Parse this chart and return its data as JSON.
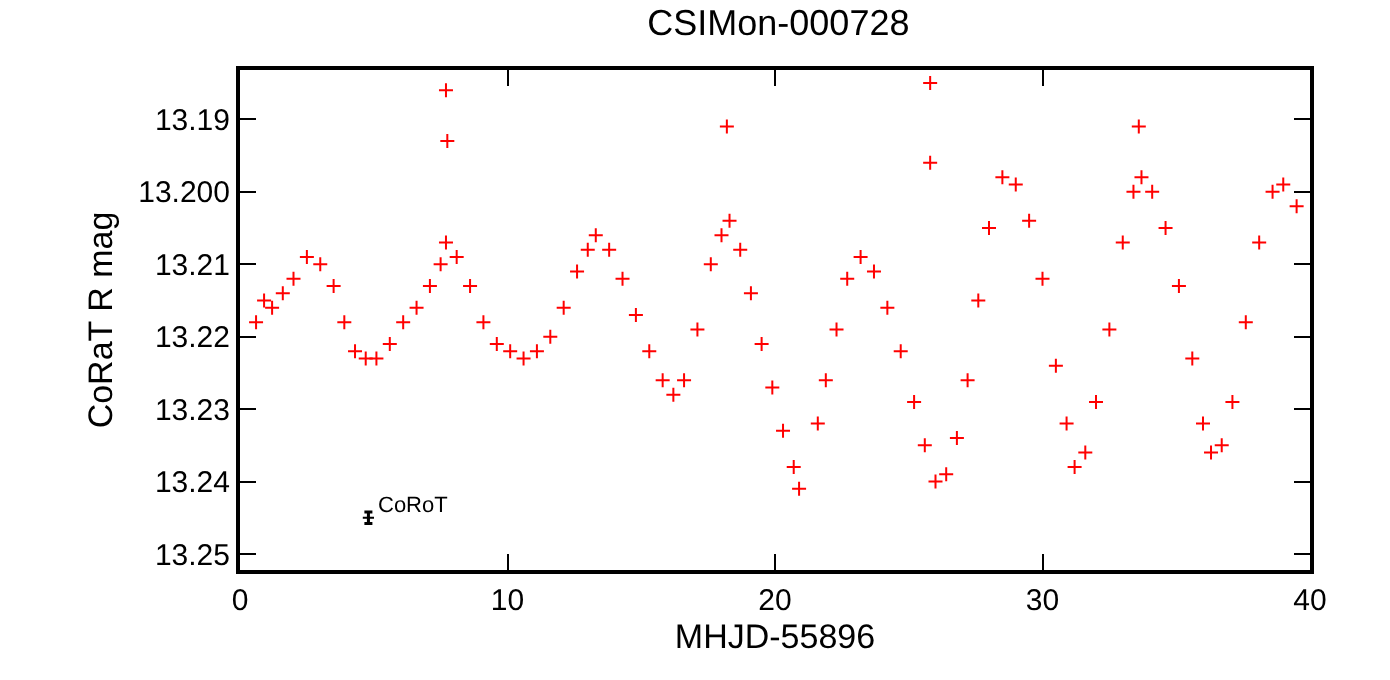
{
  "chart_data": {
    "type": "scatter",
    "title": "CSIMon-000728",
    "xlabel": "MHJD-55896",
    "ylabel": "CoRaT R mag",
    "xlim": [
      0,
      40
    ],
    "xticks": [
      0,
      10,
      20,
      30,
      40
    ],
    "ylim": [
      13.2522,
      13.1832
    ],
    "yticks": [
      13.19,
      {
        "value": 13.2,
        "label": "13.200"
      },
      13.21,
      13.22,
      13.23,
      13.24,
      13.25
    ],
    "marker": "cross",
    "series": [
      {
        "color": "#ff0000",
        "x": [
          0.6,
          0.9,
          1.2,
          1.6,
          2.0,
          2.5,
          3.0,
          3.5,
          3.9,
          4.3,
          4.7,
          5.1,
          5.6,
          6.1,
          6.6,
          7.1,
          7.5,
          7.7,
          8.1,
          8.6,
          9.1,
          9.6,
          10.1,
          10.6,
          11.1,
          11.6,
          12.1,
          12.6,
          13.0,
          13.3,
          13.8,
          14.3,
          14.8,
          15.3,
          15.8,
          16.2,
          16.6,
          17.1,
          17.6,
          18.0,
          18.3,
          18.7,
          19.1,
          19.5,
          19.9,
          20.3,
          20.7,
          20.9,
          21.6,
          21.9,
          22.3,
          22.7,
          23.2,
          23.7,
          24.2,
          24.7,
          25.2,
          25.6,
          26.0,
          26.4,
          26.8,
          27.2,
          27.6,
          28.0,
          28.5,
          29.0,
          29.5,
          30.0,
          30.5,
          30.9,
          31.2,
          31.6,
          32.0,
          32.5,
          33.0,
          33.4,
          33.7,
          34.1,
          34.6,
          35.1,
          35.6,
          36.0,
          36.3,
          36.7,
          37.1,
          37.6,
          38.1,
          38.6,
          39.0,
          39.5,
          7.7,
          7.75,
          18.2,
          25.8,
          25.8,
          33.6
        ],
        "values": [
          13.218,
          13.215,
          13.216,
          13.214,
          13.212,
          13.209,
          13.21,
          13.213,
          13.218,
          13.222,
          13.223,
          13.223,
          13.221,
          13.218,
          13.216,
          13.213,
          13.21,
          13.207,
          13.209,
          13.213,
          13.218,
          13.221,
          13.222,
          13.223,
          13.222,
          13.22,
          13.216,
          13.211,
          13.208,
          13.206,
          13.208,
          13.212,
          13.217,
          13.222,
          13.226,
          13.228,
          13.226,
          13.219,
          13.21,
          13.206,
          13.204,
          13.208,
          13.214,
          13.221,
          13.227,
          13.233,
          13.238,
          13.241,
          13.232,
          13.226,
          13.219,
          13.212,
          13.209,
          13.211,
          13.216,
          13.222,
          13.229,
          13.235,
          13.24,
          13.239,
          13.234,
          13.226,
          13.215,
          13.205,
          13.198,
          13.199,
          13.204,
          13.212,
          13.224,
          13.232,
          13.238,
          13.236,
          13.229,
          13.219,
          13.207,
          13.2,
          13.198,
          13.2,
          13.205,
          13.213,
          13.223,
          13.232,
          13.236,
          13.235,
          13.229,
          13.218,
          13.207,
          13.2,
          13.199,
          13.202,
          13.186,
          13.193,
          13.191,
          13.185,
          13.196,
          13.191
        ]
      },
      {
        "name": "CoRoT",
        "color": "#000000",
        "x": [
          4.8
        ],
        "values": [
          13.245
        ],
        "errors": [
          0.0008
        ]
      }
    ]
  }
}
